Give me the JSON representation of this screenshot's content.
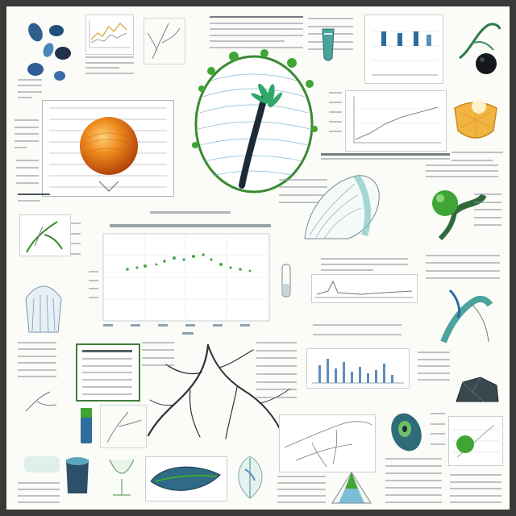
{
  "colors": {
    "page_bg": "#fbfbf8",
    "border": "#3a3a38",
    "accent_orange": "#ee8a1c",
    "accent_green": "#3fa534",
    "accent_blue": "#2b6c9e",
    "accent_teal": "#7fc7c3",
    "ink": "#5c6770"
  },
  "icons": [
    "seed-pods-icon",
    "orange-sphere-icon",
    "fern-leaf-icon",
    "root-network-icon",
    "citrus-slice-icon",
    "green-berry-icon",
    "shell-icon",
    "beaker-icon"
  ]
}
